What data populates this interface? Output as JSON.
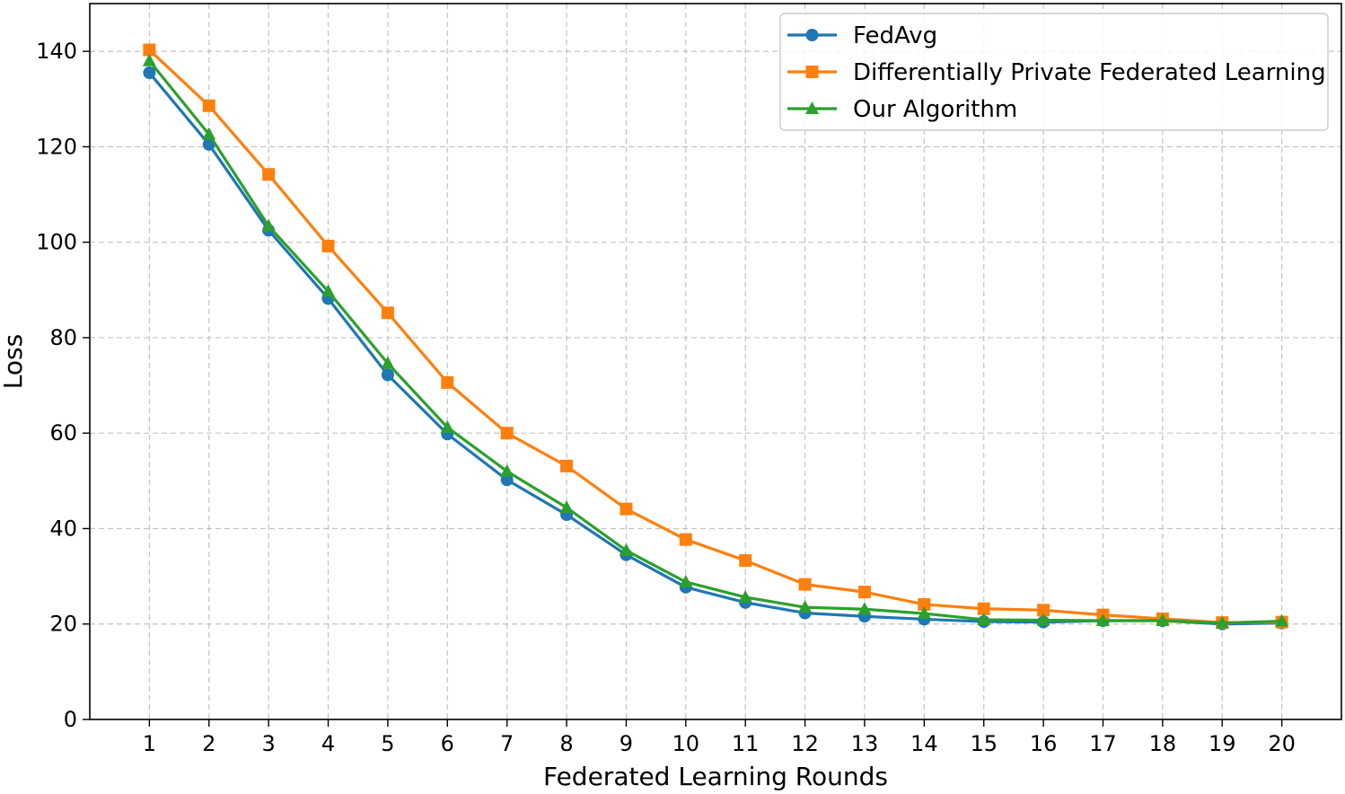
{
  "chart_data": {
    "type": "line",
    "title": "",
    "xlabel": "Federated Learning Rounds",
    "ylabel": "Loss",
    "x": [
      1,
      2,
      3,
      4,
      5,
      6,
      7,
      8,
      9,
      10,
      11,
      12,
      13,
      14,
      15,
      16,
      17,
      18,
      19,
      20
    ],
    "xticks": [
      "1",
      "2",
      "3",
      "4",
      "5",
      "6",
      "7",
      "8",
      "9",
      "10",
      "11",
      "12",
      "13",
      "14",
      "15",
      "16",
      "17",
      "18",
      "19",
      "20"
    ],
    "yticks": [
      "0",
      "20",
      "40",
      "60",
      "80",
      "100",
      "120",
      "140"
    ],
    "ytick_values": [
      0,
      20,
      40,
      60,
      80,
      100,
      120,
      140
    ],
    "xlim": [
      0,
      21
    ],
    "ylim": [
      0,
      150
    ],
    "grid": true,
    "legend_position": "top-right",
    "series": [
      {
        "name": "FedAvg",
        "color": "#1f77b4",
        "marker": "circle",
        "values": [
          135.5,
          120.5,
          102.5,
          88.2,
          72.2,
          59.8,
          50.2,
          42.9,
          34.5,
          27.7,
          24.5,
          22.3,
          21.6,
          21.0,
          20.5,
          20.4,
          20.7,
          20.7,
          20.0,
          20.2
        ]
      },
      {
        "name": "Differentially Private Federated Learning",
        "color": "#ff7f0e",
        "marker": "square",
        "values": [
          140.3,
          128.6,
          114.2,
          99.2,
          85.2,
          70.6,
          60.0,
          53.1,
          44.1,
          37.7,
          33.3,
          28.3,
          26.7,
          24.1,
          23.2,
          22.9,
          21.9,
          21.1,
          20.3,
          20.4
        ]
      },
      {
        "name": "Our Algorithm",
        "color": "#2ca02c",
        "marker": "triangle",
        "values": [
          138.0,
          122.6,
          103.4,
          89.7,
          74.6,
          61.2,
          52.0,
          44.4,
          35.4,
          28.8,
          25.6,
          23.5,
          23.1,
          22.2,
          20.9,
          20.8,
          20.7,
          20.7,
          20.2,
          20.6
        ]
      }
    ]
  }
}
